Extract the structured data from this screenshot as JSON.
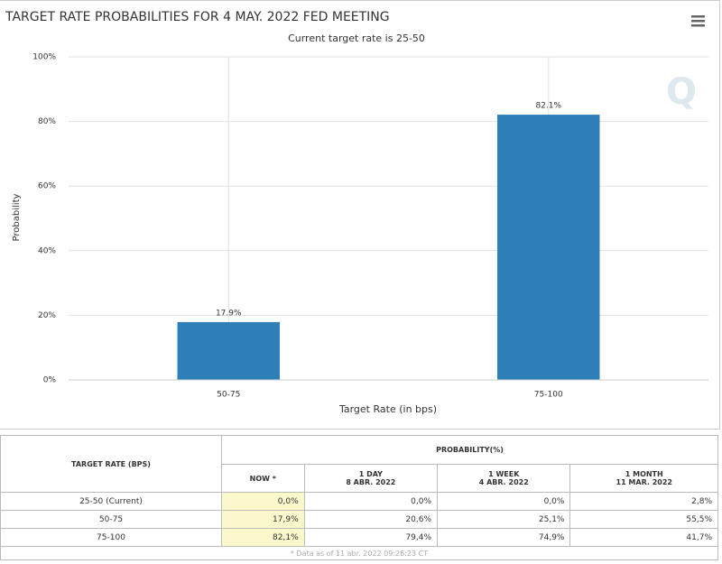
{
  "chart_data": {
    "type": "bar",
    "title": "TARGET RATE PROBABILITIES FOR 4 MAY. 2022 FED MEETING",
    "subtitle": "Current target rate is 25-50",
    "y_label": "Probability",
    "x_label": "Target Rate (in bps)",
    "categories": [
      "50-75",
      "75-100"
    ],
    "values": [
      17.9,
      82.1
    ],
    "value_labels": [
      "17.9%",
      "82.1%"
    ],
    "color": "#2e7fb8",
    "ylim": [
      0,
      100
    ],
    "yticks": [
      {
        "value": 0,
        "label": "0%"
      },
      {
        "value": 20,
        "label": "20%"
      },
      {
        "value": 40,
        "label": "40%"
      },
      {
        "value": 60,
        "label": "60%"
      },
      {
        "value": 80,
        "label": "80%"
      },
      {
        "value": 100,
        "label": "100%"
      }
    ],
    "grid": true
  },
  "table": {
    "row_header": "TARGET RATE (BPS)",
    "group_header": "PROBABILITY(%)",
    "columns": [
      [
        "NOW *"
      ],
      [
        "1 DAY",
        "8 ABR. 2022"
      ],
      [
        "1 WEEK",
        "4 ABR. 2022"
      ],
      [
        "1 MONTH",
        "11 MAR. 2022"
      ]
    ],
    "rows": [
      [
        "25-50 (Current)",
        "0,0%",
        "0,0%",
        "0,0%",
        "2,8%"
      ],
      [
        "50-75",
        "17,9%",
        "20,6%",
        "25,1%",
        "55,5%"
      ],
      [
        "75-100",
        "82,1%",
        "79,4%",
        "74,9%",
        "41,7%"
      ]
    ],
    "footnote": "* Data as of 11 abr. 2022 09:26:23 CT"
  }
}
